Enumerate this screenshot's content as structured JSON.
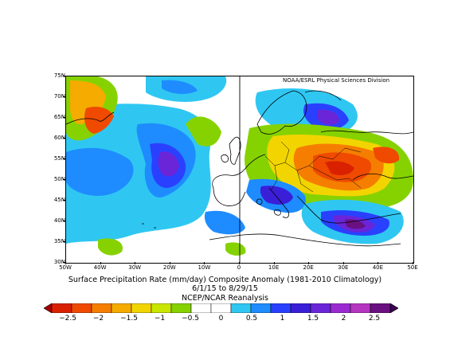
{
  "map": {
    "credit": "NOAA/ESRL Physical Sciences Division",
    "lat_labels": [
      "75N",
      "70N",
      "65N",
      "60N",
      "55N",
      "50N",
      "45N",
      "40N",
      "35N",
      "30N"
    ],
    "lon_labels": [
      "50W",
      "40W",
      "30W",
      "20W",
      "10W",
      "0",
      "10E",
      "20E",
      "30E",
      "40E",
      "50E"
    ],
    "lat_range": [
      30,
      75
    ],
    "lon_range": [
      -50,
      50
    ]
  },
  "caption": {
    "line1": "Surface Precipitation Rate (mm/day) Composite Anomaly (1981-2010 Climatology)",
    "line2": "6/1/15  to 8/29/15",
    "line3": "NCEP/NCAR Reanalysis"
  },
  "colorbar": {
    "labels": [
      "−2.5",
      "−2",
      "−1.5",
      "−1",
      "−0.5",
      "0",
      "0.5",
      "1",
      "1.5",
      "2",
      "2.5"
    ],
    "colors": [
      "#d92100",
      "#ef4a00",
      "#f57e00",
      "#f5ab00",
      "#f2d500",
      "#c9e600",
      "#86d200",
      "#ffffff",
      "#ffffff",
      "#2fc7f2",
      "#1e8cff",
      "#2a40ff",
      "#3a1fd8",
      "#6a25d8",
      "#9a2ad0",
      "#b435c0",
      "#6a1080"
    ]
  }
}
